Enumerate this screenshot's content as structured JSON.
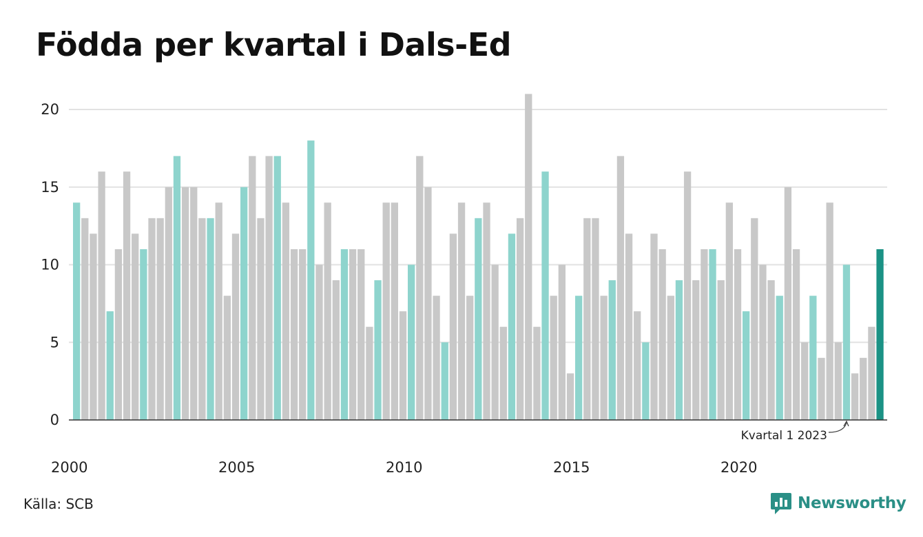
{
  "title": "Födda per kvartal i Dals-Ed",
  "source": "Källa: SCB",
  "brand": {
    "name": "Newsworthy",
    "icon": "newsworthy-logo-icon"
  },
  "colors": {
    "q1": "#8ed4cd",
    "other": "#c8c8c8",
    "latest": "#1b9285",
    "grid": "#e2e2e2",
    "axis": "#333333",
    "brand": "#2a8f86"
  },
  "chart_data": {
    "type": "bar",
    "title": "Födda per kvartal i Dals-Ed",
    "start_year": 2000,
    "x": [
      "2000K1",
      "2000K2",
      "2000K3",
      "2000K4",
      "2001K1",
      "2001K2",
      "2001K3",
      "2001K4",
      "2002K1",
      "2002K2",
      "2002K3",
      "2002K4",
      "2003K1",
      "2003K2",
      "2003K3",
      "2003K4",
      "2004K1",
      "2004K2",
      "2004K3",
      "2004K4",
      "2005K1",
      "2005K2",
      "2005K3",
      "2005K4",
      "2006K1",
      "2006K2",
      "2006K3",
      "2006K4",
      "2007K1",
      "2007K2",
      "2007K3",
      "2007K4",
      "2008K1",
      "2008K2",
      "2008K3",
      "2008K4",
      "2009K1",
      "2009K2",
      "2009K3",
      "2009K4",
      "2010K1",
      "2010K2",
      "2010K3",
      "2010K4",
      "2011K1",
      "2011K2",
      "2011K3",
      "2011K4",
      "2012K1",
      "2012K2",
      "2012K3",
      "2012K4",
      "2013K1",
      "2013K2",
      "2013K3",
      "2013K4",
      "2014K1",
      "2014K2",
      "2014K3",
      "2014K4",
      "2015K1",
      "2015K2",
      "2015K3",
      "2015K4",
      "2016K1",
      "2016K2",
      "2016K3",
      "2016K4",
      "2017K1",
      "2017K2",
      "2017K3",
      "2017K4",
      "2018K1",
      "2018K2",
      "2018K3",
      "2018K4",
      "2019K1",
      "2019K2",
      "2019K3",
      "2019K4",
      "2020K1",
      "2020K2",
      "2020K3",
      "2020K4",
      "2021K1",
      "2021K2",
      "2021K3",
      "2021K4",
      "2022K1",
      "2022K2",
      "2022K3",
      "2022K4",
      "2023K1",
      "2023K2",
      "2023K3",
      "2023K4",
      "2024K1"
    ],
    "values": [
      14,
      13,
      12,
      16,
      7,
      11,
      16,
      12,
      11,
      13,
      13,
      15,
      17,
      15,
      15,
      13,
      13,
      14,
      8,
      12,
      15,
      17,
      13,
      17,
      17,
      14,
      11,
      11,
      18,
      10,
      14,
      9,
      11,
      11,
      11,
      6,
      9,
      14,
      14,
      7,
      10,
      17,
      15,
      8,
      5,
      12,
      14,
      8,
      13,
      14,
      10,
      6,
      12,
      13,
      21,
      6,
      16,
      8,
      10,
      3,
      8,
      13,
      13,
      8,
      9,
      17,
      12,
      7,
      5,
      12,
      11,
      8,
      9,
      16,
      9,
      11,
      11,
      9,
      14,
      11,
      7,
      13,
      10,
      9,
      8,
      15,
      11,
      5,
      8,
      4,
      14,
      5,
      10,
      3,
      4,
      6,
      11
    ],
    "x_tick_labels": [
      "2000",
      "2005",
      "2010",
      "2015",
      "2020"
    ],
    "y_ticks": [
      0,
      5,
      10,
      15,
      20
    ],
    "ylim": [
      0,
      21
    ],
    "grid": true,
    "annotation": {
      "text": "Kvartal 1 2023",
      "target": "2023K1"
    }
  }
}
